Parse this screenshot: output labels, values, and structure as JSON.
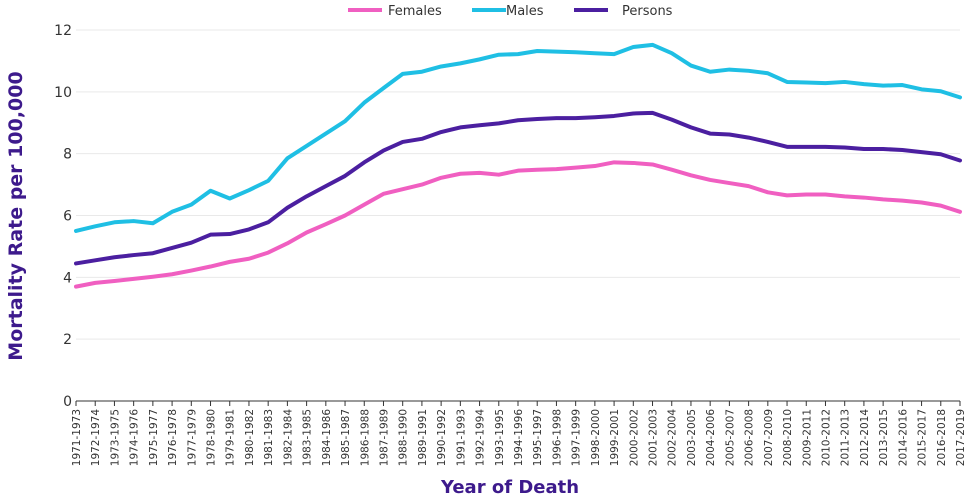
{
  "chart_data": {
    "type": "line",
    "title": "",
    "xlabel": "Year of Death",
    "ylabel": "Mortality Rate per 100,000",
    "ylim": [
      0,
      12
    ],
    "yticks": [
      0,
      2,
      4,
      6,
      8,
      10,
      12
    ],
    "grid": true,
    "legend_position": "top-center",
    "categories": [
      "1971-1973",
      "1972-1974",
      "1973-1975",
      "1974-1976",
      "1975-1977",
      "1976-1978",
      "1977-1979",
      "1978-1980",
      "1979-1981",
      "1980-1982",
      "1981-1983",
      "1982-1984",
      "1983-1985",
      "1984-1986",
      "1985-1987",
      "1986-1988",
      "1987-1989",
      "1988-1990",
      "1989-1991",
      "1990-1992",
      "1991-1993",
      "1992-1994",
      "1993-1995",
      "1994-1996",
      "1995-1997",
      "1996-1998",
      "1997-1999",
      "1998-2000",
      "1999-2001",
      "2000-2002",
      "2001-2003",
      "2002-2004",
      "2003-2005",
      "2004-2006",
      "2005-2007",
      "2006-2008",
      "2007-2009",
      "2008-2010",
      "2009-2011",
      "2010-2012",
      "2011-2013",
      "2012-2014",
      "2013-2015",
      "2014-2016",
      "2015-2017",
      "2016-2018",
      "2017-2019"
    ],
    "series": [
      {
        "name": "Females",
        "color": "#f05fc1",
        "values": [
          3.7,
          3.82,
          3.88,
          3.95,
          4.02,
          4.1,
          4.22,
          4.35,
          4.5,
          4.6,
          4.8,
          5.1,
          5.45,
          5.72,
          6.0,
          6.35,
          6.7,
          6.85,
          7.0,
          7.22,
          7.35,
          7.38,
          7.32,
          7.45,
          7.48,
          7.5,
          7.55,
          7.6,
          7.72,
          7.7,
          7.65,
          7.48,
          7.3,
          7.15,
          7.05,
          6.95,
          6.75,
          6.65,
          6.68,
          6.68,
          6.62,
          6.58,
          6.52,
          6.48,
          6.42,
          6.32,
          6.12
        ]
      },
      {
        "name": "Males",
        "color": "#1fbfe4",
        "values": [
          5.5,
          5.65,
          5.78,
          5.82,
          5.75,
          6.12,
          6.35,
          6.8,
          6.55,
          6.82,
          7.12,
          7.85,
          8.25,
          8.65,
          9.05,
          9.65,
          10.12,
          10.58,
          10.65,
          10.82,
          10.92,
          11.05,
          11.2,
          11.22,
          11.32,
          11.3,
          11.28,
          11.25,
          11.22,
          11.45,
          11.52,
          11.25,
          10.85,
          10.65,
          10.72,
          10.68,
          10.6,
          10.32,
          10.3,
          10.28,
          10.32,
          10.25,
          10.2,
          10.22,
          10.08,
          10.02,
          9.82
        ]
      },
      {
        "name": "Persons",
        "color": "#4b1fa0",
        "values": [
          4.45,
          4.55,
          4.65,
          4.72,
          4.78,
          4.95,
          5.12,
          5.38,
          5.4,
          5.55,
          5.78,
          6.25,
          6.62,
          6.95,
          7.28,
          7.72,
          8.1,
          8.38,
          8.48,
          8.7,
          8.85,
          8.92,
          8.98,
          9.08,
          9.12,
          9.15,
          9.15,
          9.18,
          9.22,
          9.3,
          9.32,
          9.1,
          8.85,
          8.65,
          8.62,
          8.52,
          8.38,
          8.22,
          8.22,
          8.22,
          8.2,
          8.15,
          8.15,
          8.12,
          8.05,
          7.98,
          7.78
        ]
      }
    ]
  }
}
